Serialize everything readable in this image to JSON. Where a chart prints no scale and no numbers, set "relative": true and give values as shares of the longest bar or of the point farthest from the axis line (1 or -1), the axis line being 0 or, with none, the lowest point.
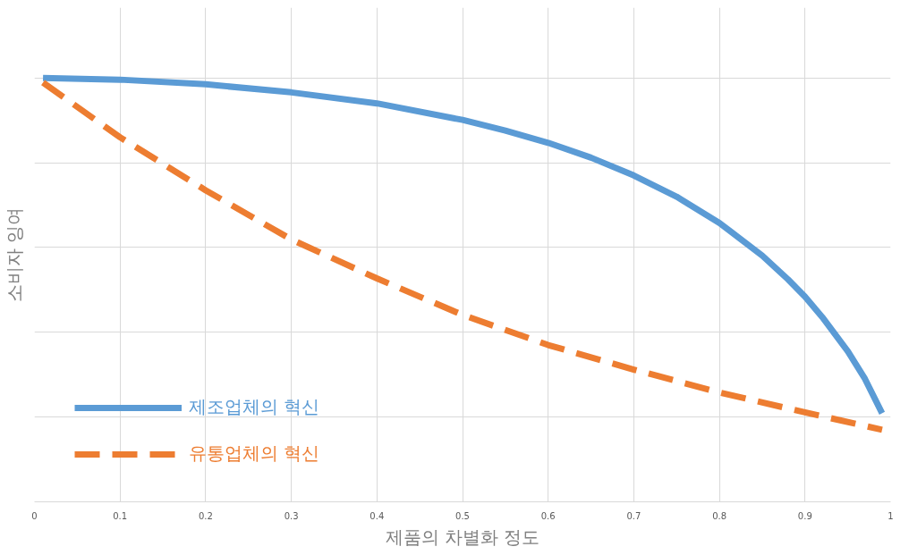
{
  "chart_data": {
    "type": "line",
    "relative": true,
    "xlabel": "제품의 차별화 정도",
    "ylabel": "소비자 잉여",
    "xlim": [
      0,
      1
    ],
    "xticks": [
      0,
      0.1,
      0.2,
      0.3,
      0.4,
      0.5,
      0.6,
      0.7,
      0.8,
      0.9,
      1
    ],
    "grid": true,
    "legend": "bottom left",
    "series": [
      {
        "name": "제조업체의 혁신",
        "color": "#5b9bd5",
        "line_style": "solid",
        "x": [
          0.01,
          0.1,
          0.2,
          0.3,
          0.4,
          0.5,
          0.55,
          0.6,
          0.65,
          0.7,
          0.75,
          0.8,
          0.85,
          0.88,
          0.9,
          0.92,
          0.95,
          0.97,
          0.99
        ],
        "values": [
          1.0,
          0.996,
          0.985,
          0.966,
          0.94,
          0.901,
          0.876,
          0.847,
          0.812,
          0.77,
          0.72,
          0.658,
          0.581,
          0.525,
          0.484,
          0.436,
          0.355,
          0.29,
          0.209
        ]
      },
      {
        "name": "유통업체의 혁신",
        "color": "#ed7d31",
        "line_style": "dashed",
        "x": [
          0.01,
          0.1,
          0.2,
          0.3,
          0.4,
          0.5,
          0.6,
          0.7,
          0.8,
          0.9,
          0.99
        ],
        "values": [
          0.989,
          0.86,
          0.735,
          0.619,
          0.527,
          0.441,
          0.37,
          0.312,
          0.258,
          0.211,
          0.17
        ]
      }
    ]
  }
}
